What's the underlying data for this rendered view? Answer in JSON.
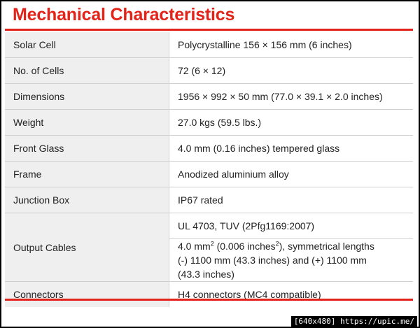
{
  "title": "Mechanical Characteristics",
  "rows": [
    {
      "label": "Solar Cell",
      "value": "Polycrystalline 156 × 156 mm (6 inches)"
    },
    {
      "label": "No. of Cells",
      "value": "72 (6 × 12)"
    },
    {
      "label": "Dimensions",
      "value": "1956 × 992 × 50 mm (77.0 × 39.1 × 2.0 inches)"
    },
    {
      "label": "Weight",
      "value": "27.0 kgs (59.5 lbs.)"
    },
    {
      "label": "Front Glass",
      "value": "4.0 mm (0.16 inches) tempered glass"
    },
    {
      "label": "Frame",
      "value": "Anodized aluminium alloy"
    },
    {
      "label": "Junction Box",
      "value": "IP67 rated"
    },
    {
      "label": "Output Cables",
      "value_1": "UL 4703, TUV (2Pfg1169:2007)",
      "value_2_a": "4.0 mm",
      "value_2_sup_a": "2",
      "value_2_b": " (0.006 inches",
      "value_2_sup_b": "2",
      "value_2_c": "), symmetrical lengths (-) 1100 mm (43.3 inches) and (+) 1100 mm (43.3 inches)"
    },
    {
      "label": "Connectors",
      "value": "H4 connectors (MC4 compatible)"
    }
  ],
  "colors": {
    "accent": "#e2231a",
    "label_bg": "#efefef",
    "border": "#d0d0d0"
  },
  "watermark": "[640x480] https://upic.me/"
}
